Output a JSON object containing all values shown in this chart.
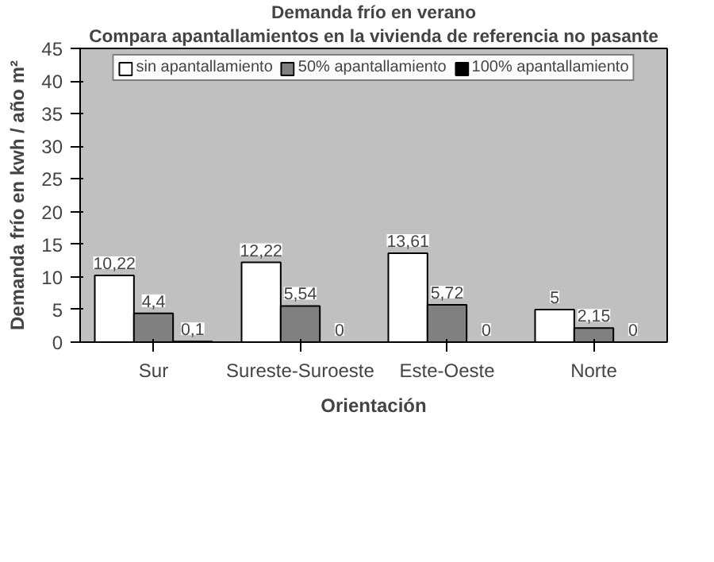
{
  "chart_data": {
    "type": "bar",
    "title": "Demanda frío en verano",
    "subtitle": "Compara apantallamientos en la vivienda de referencia no pasante",
    "xlabel": "Orientación",
    "ylabel": "Demanda frío en kwh / año m²",
    "categories": [
      "Sur",
      "Sureste-Suroeste",
      "Este-Oeste",
      "Norte"
    ],
    "series": [
      {
        "name": "sin apantallamiento",
        "color": "#ffffff",
        "values": [
          10.22,
          12.22,
          13.61,
          5
        ],
        "value_labels": [
          "10,22",
          "12,22",
          "13,61",
          "5"
        ]
      },
      {
        "name": "50% apantallamiento",
        "color": "#808080",
        "values": [
          4.4,
          5.54,
          5.72,
          2.15
        ],
        "value_labels": [
          "4,4",
          "5,54",
          "5,72",
          "2,15"
        ]
      },
      {
        "name": "100% apantallamiento",
        "color": "#000000",
        "values": [
          0.1,
          0,
          0,
          0
        ],
        "value_labels": [
          "0,1",
          "0",
          "0",
          "0"
        ]
      }
    ],
    "ylim": [
      0,
      45
    ],
    "yticks": [
      0,
      5,
      10,
      15,
      20,
      25,
      30,
      35,
      40,
      45
    ],
    "grid": false,
    "legend": "top"
  }
}
